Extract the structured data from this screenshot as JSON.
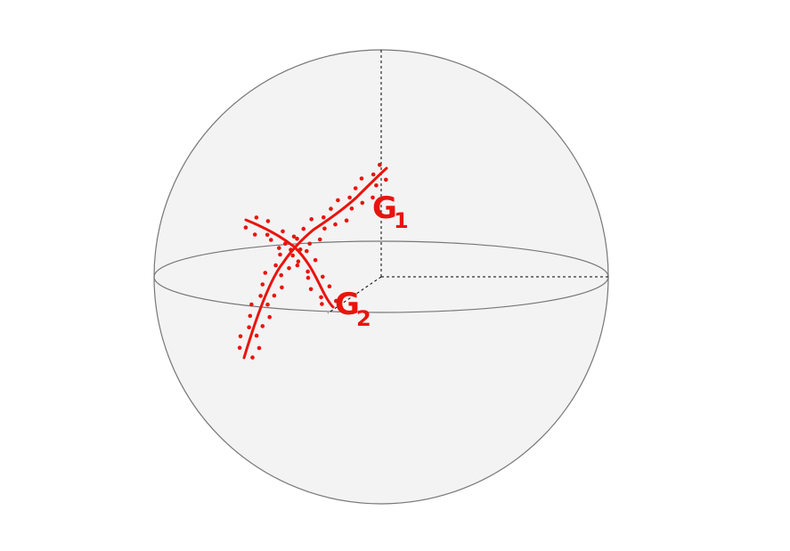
{
  "colors": {
    "sphere_fill": "#f3f3f3",
    "sphere_stroke": "#777777",
    "axis_stroke": "#000000",
    "curve": "#e8140c"
  },
  "labels": {
    "g1": {
      "letter": "G",
      "subscript": "1"
    },
    "g2": {
      "letter": "G",
      "subscript": "2"
    }
  }
}
